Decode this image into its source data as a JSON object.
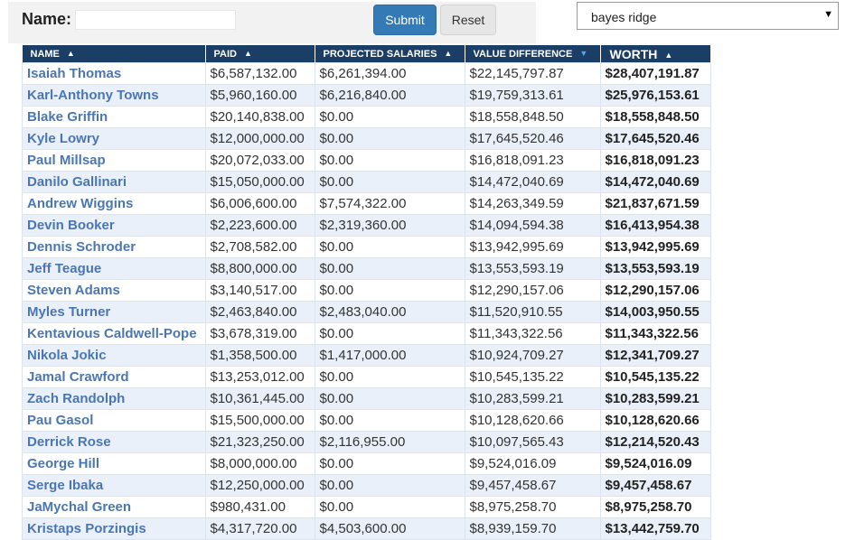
{
  "form": {
    "name_label": "Name:",
    "name_value": "",
    "submit_label": "Submit",
    "reset_label": "Reset"
  },
  "dropdown": {
    "selected": "bayes ridge"
  },
  "table": {
    "headers": {
      "name": "NAME",
      "paid": "PAID",
      "projected": "PROJECTED SALARIES",
      "diff": "VALUE DIFFERENCE",
      "worth": "WORTH"
    },
    "rows": [
      {
        "name": "Isaiah Thomas",
        "paid": "$6,587,132.00",
        "projected": "$6,261,394.00",
        "diff": "$22,145,797.87",
        "worth": "$28,407,191.87"
      },
      {
        "name": "Karl-Anthony Towns",
        "paid": "$5,960,160.00",
        "projected": "$6,216,840.00",
        "diff": "$19,759,313.61",
        "worth": "$25,976,153.61"
      },
      {
        "name": "Blake Griffin",
        "paid": "$20,140,838.00",
        "projected": "$0.00",
        "diff": "$18,558,848.50",
        "worth": "$18,558,848.50"
      },
      {
        "name": "Kyle Lowry",
        "paid": "$12,000,000.00",
        "projected": "$0.00",
        "diff": "$17,645,520.46",
        "worth": "$17,645,520.46"
      },
      {
        "name": "Paul Millsap",
        "paid": "$20,072,033.00",
        "projected": "$0.00",
        "diff": "$16,818,091.23",
        "worth": "$16,818,091.23"
      },
      {
        "name": "Danilo Gallinari",
        "paid": "$15,050,000.00",
        "projected": "$0.00",
        "diff": "$14,472,040.69",
        "worth": "$14,472,040.69"
      },
      {
        "name": "Andrew Wiggins",
        "paid": "$6,006,600.00",
        "projected": "$7,574,322.00",
        "diff": "$14,263,349.59",
        "worth": "$21,837,671.59"
      },
      {
        "name": "Devin Booker",
        "paid": "$2,223,600.00",
        "projected": "$2,319,360.00",
        "diff": "$14,094,594.38",
        "worth": "$16,413,954.38"
      },
      {
        "name": "Dennis Schroder",
        "paid": "$2,708,582.00",
        "projected": "$0.00",
        "diff": "$13,942,995.69",
        "worth": "$13,942,995.69"
      },
      {
        "name": "Jeff Teague",
        "paid": "$8,800,000.00",
        "projected": "$0.00",
        "diff": "$13,553,593.19",
        "worth": "$13,553,593.19"
      },
      {
        "name": "Steven Adams",
        "paid": "$3,140,517.00",
        "projected": "$0.00",
        "diff": "$12,290,157.06",
        "worth": "$12,290,157.06"
      },
      {
        "name": "Myles Turner",
        "paid": "$2,463,840.00",
        "projected": "$2,483,040.00",
        "diff": "$11,520,910.55",
        "worth": "$14,003,950.55"
      },
      {
        "name": "Kentavious Caldwell-Pope",
        "paid": "$3,678,319.00",
        "projected": "$0.00",
        "diff": "$11,343,322.56",
        "worth": "$11,343,322.56"
      },
      {
        "name": "Nikola Jokic",
        "paid": "$1,358,500.00",
        "projected": "$1,417,000.00",
        "diff": "$10,924,709.27",
        "worth": "$12,341,709.27"
      },
      {
        "name": "Jamal Crawford",
        "paid": "$13,253,012.00",
        "projected": "$0.00",
        "diff": "$10,545,135.22",
        "worth": "$10,545,135.22"
      },
      {
        "name": "Zach Randolph",
        "paid": "$10,361,445.00",
        "projected": "$0.00",
        "diff": "$10,283,599.21",
        "worth": "$10,283,599.21"
      },
      {
        "name": "Pau Gasol",
        "paid": "$15,500,000.00",
        "projected": "$0.00",
        "diff": "$10,128,620.66",
        "worth": "$10,128,620.66"
      },
      {
        "name": "Derrick Rose",
        "paid": "$21,323,250.00",
        "projected": "$2,116,955.00",
        "diff": "$10,097,565.43",
        "worth": "$12,214,520.43"
      },
      {
        "name": "George Hill",
        "paid": "$8,000,000.00",
        "projected": "$0.00",
        "diff": "$9,524,016.09",
        "worth": "$9,524,016.09"
      },
      {
        "name": "Serge Ibaka",
        "paid": "$12,250,000.00",
        "projected": "$0.00",
        "diff": "$9,457,458.67",
        "worth": "$9,457,458.67"
      },
      {
        "name": "JaMychal Green",
        "paid": "$980,431.00",
        "projected": "$0.00",
        "diff": "$8,975,258.70",
        "worth": "$8,975,258.70"
      },
      {
        "name": "Kristaps Porzingis",
        "paid": "$4,317,720.00",
        "projected": "$4,503,600.00",
        "diff": "$8,939,159.70",
        "worth": "$13,442,759.70"
      }
    ]
  }
}
